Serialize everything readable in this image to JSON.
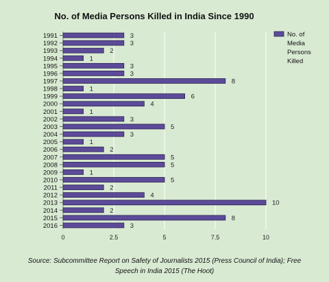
{
  "chart_data": {
    "type": "bar",
    "orientation": "horizontal",
    "title": "No. of Media Persons Killed in India Since 1990",
    "categories": [
      "1991",
      "1992",
      "1993",
      "1994",
      "1995",
      "1996",
      "1997",
      "1998",
      "1999",
      "2000",
      "2001",
      "2002",
      "2003",
      "2004",
      "2005",
      "2006",
      "2007",
      "2008",
      "2009",
      "2010",
      "2011",
      "2012",
      "2013",
      "2014",
      "2015",
      "2016"
    ],
    "series": [
      {
        "name": "No. of Media Persons Killed",
        "values": [
          3,
          3,
          2,
          1,
          3,
          3,
          8,
          1,
          6,
          4,
          1,
          3,
          5,
          3,
          1,
          2,
          5,
          5,
          1,
          5,
          2,
          4,
          10,
          2,
          8,
          3
        ]
      }
    ],
    "xlim": [
      0,
      10
    ],
    "xticks": [
      "0",
      "2.5",
      "5",
      "7.5",
      "10"
    ],
    "legend_lines": [
      "No. of",
      "Media",
      "Persons",
      "Killed"
    ],
    "legend_position": "top-right",
    "grid": "vertical",
    "bar_color": "#5c4b99",
    "source": "Source: Subcommittee Report on Safety of Journalists 2015 (Press Council of India); Free Speech in India 2015 (The Hoot)"
  }
}
